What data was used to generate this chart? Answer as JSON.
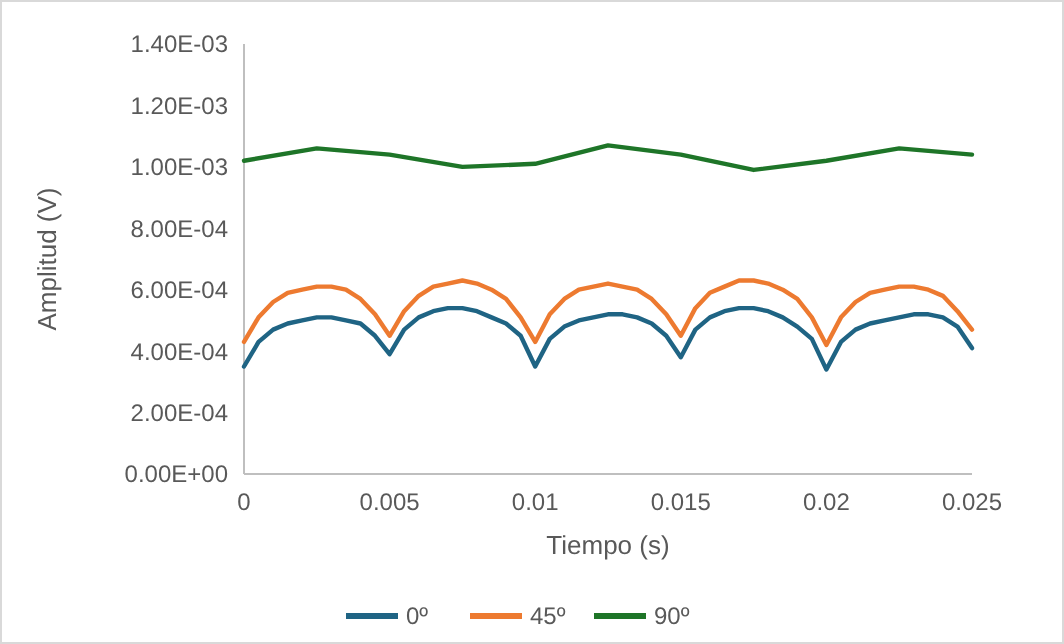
{
  "chart_data": {
    "type": "line",
    "xlabel": "Tiempo (s)",
    "ylabel": "Amplitud (V)",
    "xlim": [
      0,
      0.025
    ],
    "xticks": [
      0,
      0.005,
      0.01,
      0.015,
      0.02,
      0.025
    ],
    "ylim": [
      0,
      0.0014
    ],
    "yticks": [
      {
        "value": 0,
        "label": "0.00E+00"
      },
      {
        "value": 0.0002,
        "label": "2.00E-04"
      },
      {
        "value": 0.0004,
        "label": "4.00E-04"
      },
      {
        "value": 0.0006,
        "label": "6.00E-04"
      },
      {
        "value": 0.0008,
        "label": "8.00E-04"
      },
      {
        "value": 0.001,
        "label": "1.00E-03"
      },
      {
        "value": 0.0012,
        "label": "1.20E-03"
      },
      {
        "value": 0.0014,
        "label": "1.40E-03"
      }
    ],
    "grid": false,
    "legend": "bottom",
    "marker": "none",
    "line_style": "solid",
    "x": [
      0,
      0.0005,
      0.001,
      0.0015,
      0.002,
      0.0025,
      0.003,
      0.0035,
      0.004,
      0.0045,
      0.005,
      0.0055,
      0.006,
      0.0065,
      0.007,
      0.0075,
      0.008,
      0.0085,
      0.009,
      0.0095,
      0.01,
      0.0105,
      0.011,
      0.0115,
      0.012,
      0.0125,
      0.013,
      0.0135,
      0.014,
      0.0145,
      0.015,
      0.0155,
      0.016,
      0.0165,
      0.017,
      0.0175,
      0.018,
      0.0185,
      0.019,
      0.0195,
      0.02,
      0.0205,
      0.021,
      0.0215,
      0.022,
      0.0225,
      0.023,
      0.0235,
      0.024,
      0.0245,
      0.025
    ],
    "series": [
      {
        "name": "0º",
        "color": "#1f6484",
        "values": [
          0.00035,
          0.00043,
          0.00047,
          0.00049,
          0.0005,
          0.00051,
          0.00051,
          0.0005,
          0.00049,
          0.00045,
          0.00039,
          0.00047,
          0.00051,
          0.00053,
          0.00054,
          0.00054,
          0.00053,
          0.00051,
          0.00049,
          0.00045,
          0.00035,
          0.00044,
          0.00048,
          0.0005,
          0.00051,
          0.00052,
          0.00052,
          0.00051,
          0.00049,
          0.00045,
          0.00038,
          0.00047,
          0.00051,
          0.00053,
          0.00054,
          0.00054,
          0.00053,
          0.00051,
          0.00048,
          0.00044,
          0.00034,
          0.00043,
          0.00047,
          0.00049,
          0.0005,
          0.00051,
          0.00052,
          0.00052,
          0.00051,
          0.00048,
          0.00041
        ]
      },
      {
        "name": "45º",
        "color": "#ed7a30",
        "values": [
          0.00043,
          0.00051,
          0.00056,
          0.00059,
          0.0006,
          0.00061,
          0.00061,
          0.0006,
          0.00057,
          0.00052,
          0.00045,
          0.00053,
          0.00058,
          0.00061,
          0.00062,
          0.00063,
          0.00062,
          0.0006,
          0.00057,
          0.00051,
          0.00043,
          0.00052,
          0.00057,
          0.0006,
          0.00061,
          0.00062,
          0.00061,
          0.0006,
          0.00057,
          0.00052,
          0.00045,
          0.00054,
          0.00059,
          0.00061,
          0.00063,
          0.00063,
          0.00062,
          0.0006,
          0.00057,
          0.00051,
          0.00042,
          0.00051,
          0.00056,
          0.00059,
          0.0006,
          0.00061,
          0.00061,
          0.0006,
          0.00058,
          0.00053,
          0.00047
        ]
      },
      {
        "name": "90º",
        "color": "#1e7528",
        "x": [
          0,
          0.0025,
          0.005,
          0.0075,
          0.01,
          0.0125,
          0.015,
          0.0175,
          0.02,
          0.0225,
          0.025
        ],
        "values": [
          0.00102,
          0.00106,
          0.00104,
          0.001,
          0.00101,
          0.00107,
          0.00104,
          0.00099,
          0.00102,
          0.00106,
          0.00104
        ]
      }
    ]
  }
}
